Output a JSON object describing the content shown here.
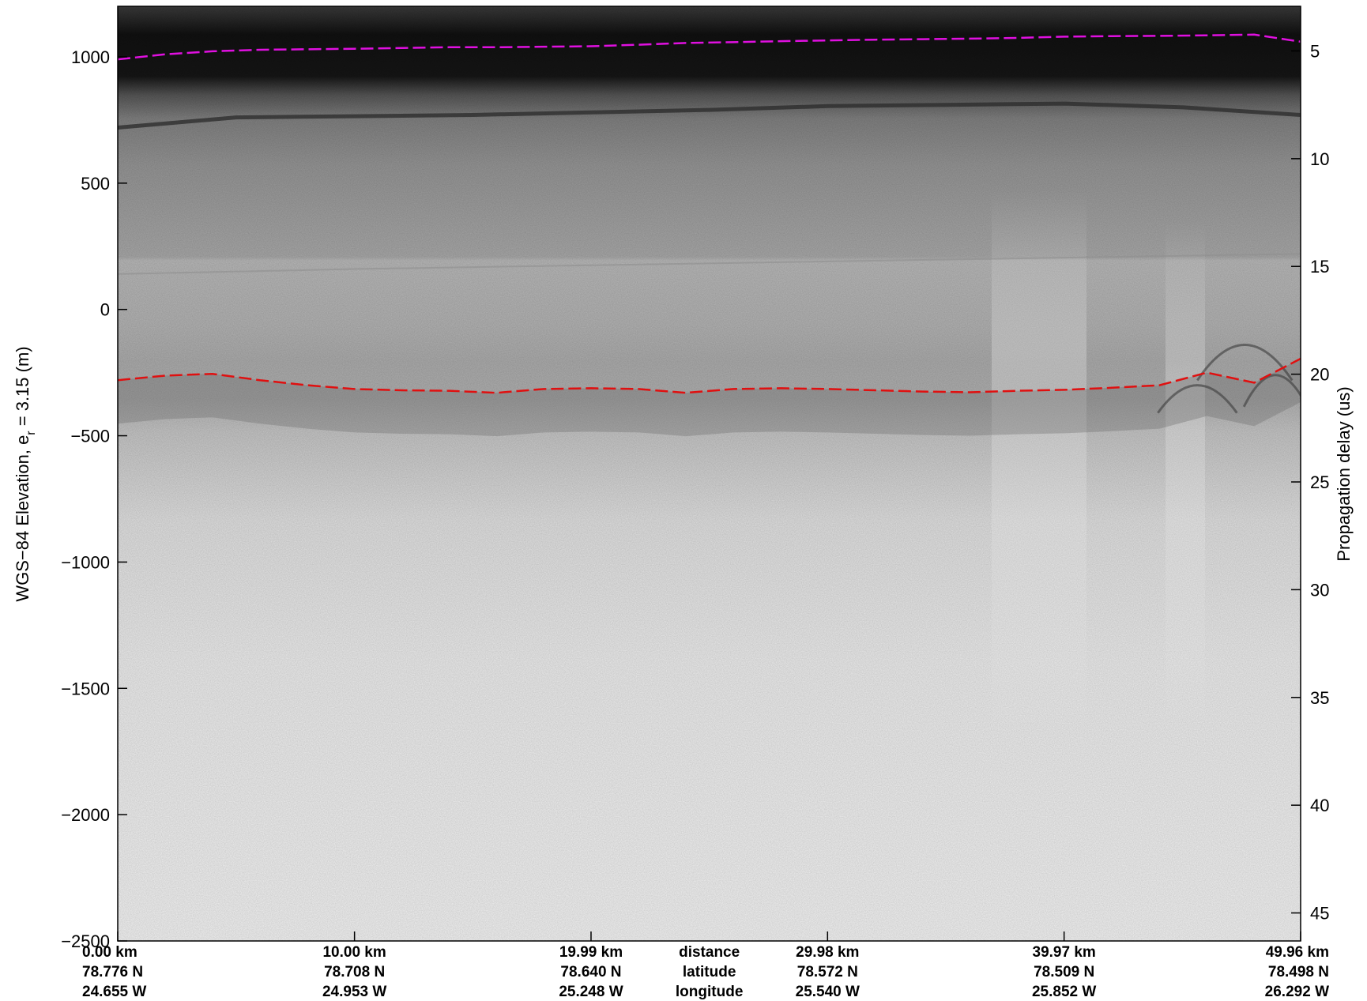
{
  "chart_data": {
    "type": "heatmap",
    "description_kind": "radar echogram",
    "colormap": "grayscale",
    "left_axis": {
      "label_main": "WGS−84 Elevation, e",
      "label_sub": "r",
      "label_tail": " = 3.15 (m)",
      "ylim": [
        -2500,
        1200
      ],
      "ticks": [
        1000,
        500,
        0,
        -500,
        -1000,
        -1500,
        -2000,
        -2500
      ],
      "tick_labels": [
        "1000",
        "500",
        "0",
        "−500",
        "−1000",
        "−1500",
        "−2000",
        "−2500"
      ]
    },
    "right_axis": {
      "label": "Propagation delay (us)",
      "ylim": [
        2.93,
        46.3
      ],
      "ticks": [
        5,
        10,
        15,
        20,
        25,
        30,
        35,
        40,
        45
      ],
      "tick_labels": [
        "5",
        "10",
        "15",
        "20",
        "25",
        "30",
        "35",
        "40",
        "45"
      ]
    },
    "x_axis": {
      "distance_km": [
        0.0,
        10.0,
        19.99,
        29.98,
        39.97,
        49.96
      ],
      "columns": [
        {
          "distance": "0.00 km",
          "latitude": "78.776 N",
          "longitude": "24.655 W"
        },
        {
          "distance": "10.00 km",
          "latitude": "78.708 N",
          "longitude": "24.953 W"
        },
        {
          "distance": "19.99 km",
          "latitude": "78.640 N",
          "longitude": "25.248 W"
        },
        {
          "distance": "29.98 km",
          "latitude": "78.572 N",
          "longitude": "25.540 W"
        },
        {
          "distance": "39.97 km",
          "latitude": "78.509 N",
          "longitude": "25.852 W"
        },
        {
          "distance": "49.96 km",
          "latitude": "78.498 N",
          "longitude": "26.292 W"
        }
      ],
      "row_labels": {
        "distance": "distance",
        "latitude": "latitude",
        "longitude": "longitude"
      }
    },
    "series": [
      {
        "color": "#e010e0",
        "style": "dashed",
        "x_km": [
          0,
          2,
          4,
          6,
          8,
          10,
          12,
          14,
          16,
          18,
          20,
          22,
          24,
          26,
          28,
          30,
          32,
          34,
          36,
          38,
          40,
          42,
          44,
          46,
          48,
          49.96
        ],
        "y_m": [
          990,
          1010,
          1022,
          1028,
          1030,
          1032,
          1035,
          1038,
          1038,
          1040,
          1042,
          1048,
          1055,
          1058,
          1062,
          1065,
          1068,
          1070,
          1072,
          1075,
          1080,
          1082,
          1083,
          1085,
          1088,
          1060
        ]
      },
      {
        "color": "#e01010",
        "style": "dashed",
        "x_km": [
          0,
          2,
          4,
          6,
          8,
          10,
          12,
          14,
          16,
          18,
          20,
          22,
          24,
          26,
          28,
          30,
          32,
          34,
          36,
          38,
          40,
          42,
          44,
          46,
          48,
          49.96
        ],
        "y_m": [
          -280,
          -262,
          -255,
          -280,
          -300,
          -315,
          -320,
          -322,
          -330,
          -315,
          -312,
          -315,
          -330,
          -315,
          -312,
          -315,
          -320,
          -325,
          -328,
          -322,
          -318,
          -310,
          -300,
          -250,
          -290,
          -195
        ]
      }
    ],
    "layers_m": [
      {
        "type": "upper-reflector",
        "x_km": [
          0,
          5,
          10,
          15,
          20,
          25,
          30,
          35,
          40,
          45,
          49.96
        ],
        "y_m": [
          720,
          760,
          765,
          770,
          780,
          790,
          805,
          810,
          815,
          800,
          770
        ]
      },
      {
        "type": "brightness-boundary",
        "x_km": [
          0,
          10,
          20,
          30,
          40,
          49.96
        ],
        "y_m": [
          140,
          160,
          175,
          190,
          205,
          220
        ]
      }
    ]
  }
}
